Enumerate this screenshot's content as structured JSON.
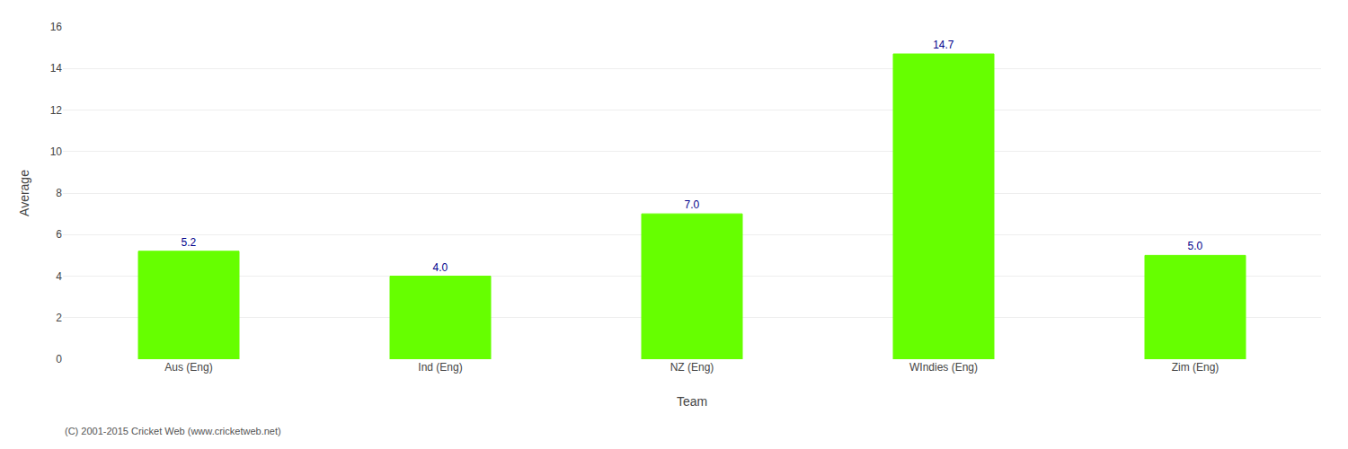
{
  "chart_data": {
    "type": "bar",
    "categories": [
      "Aus (Eng)",
      "Ind (Eng)",
      "NZ (Eng)",
      "WIndies (Eng)",
      "Zim (Eng)"
    ],
    "values": [
      5.2,
      4.0,
      7.0,
      14.7,
      5.0
    ],
    "value_labels": [
      "5.2",
      "4.0",
      "7.0",
      "14.7",
      "5.0"
    ],
    "data_labels": true,
    "color": "#66ff00",
    "xlabel": "Team",
    "ylabel": "Average",
    "ylim": [
      0,
      16
    ],
    "yticks": [
      0,
      2,
      4,
      6,
      8,
      10,
      12,
      14,
      16
    ],
    "grid": true,
    "annotations": [
      "(C) 2001-2015 Cricket Web (www.cricketweb.net)"
    ]
  }
}
